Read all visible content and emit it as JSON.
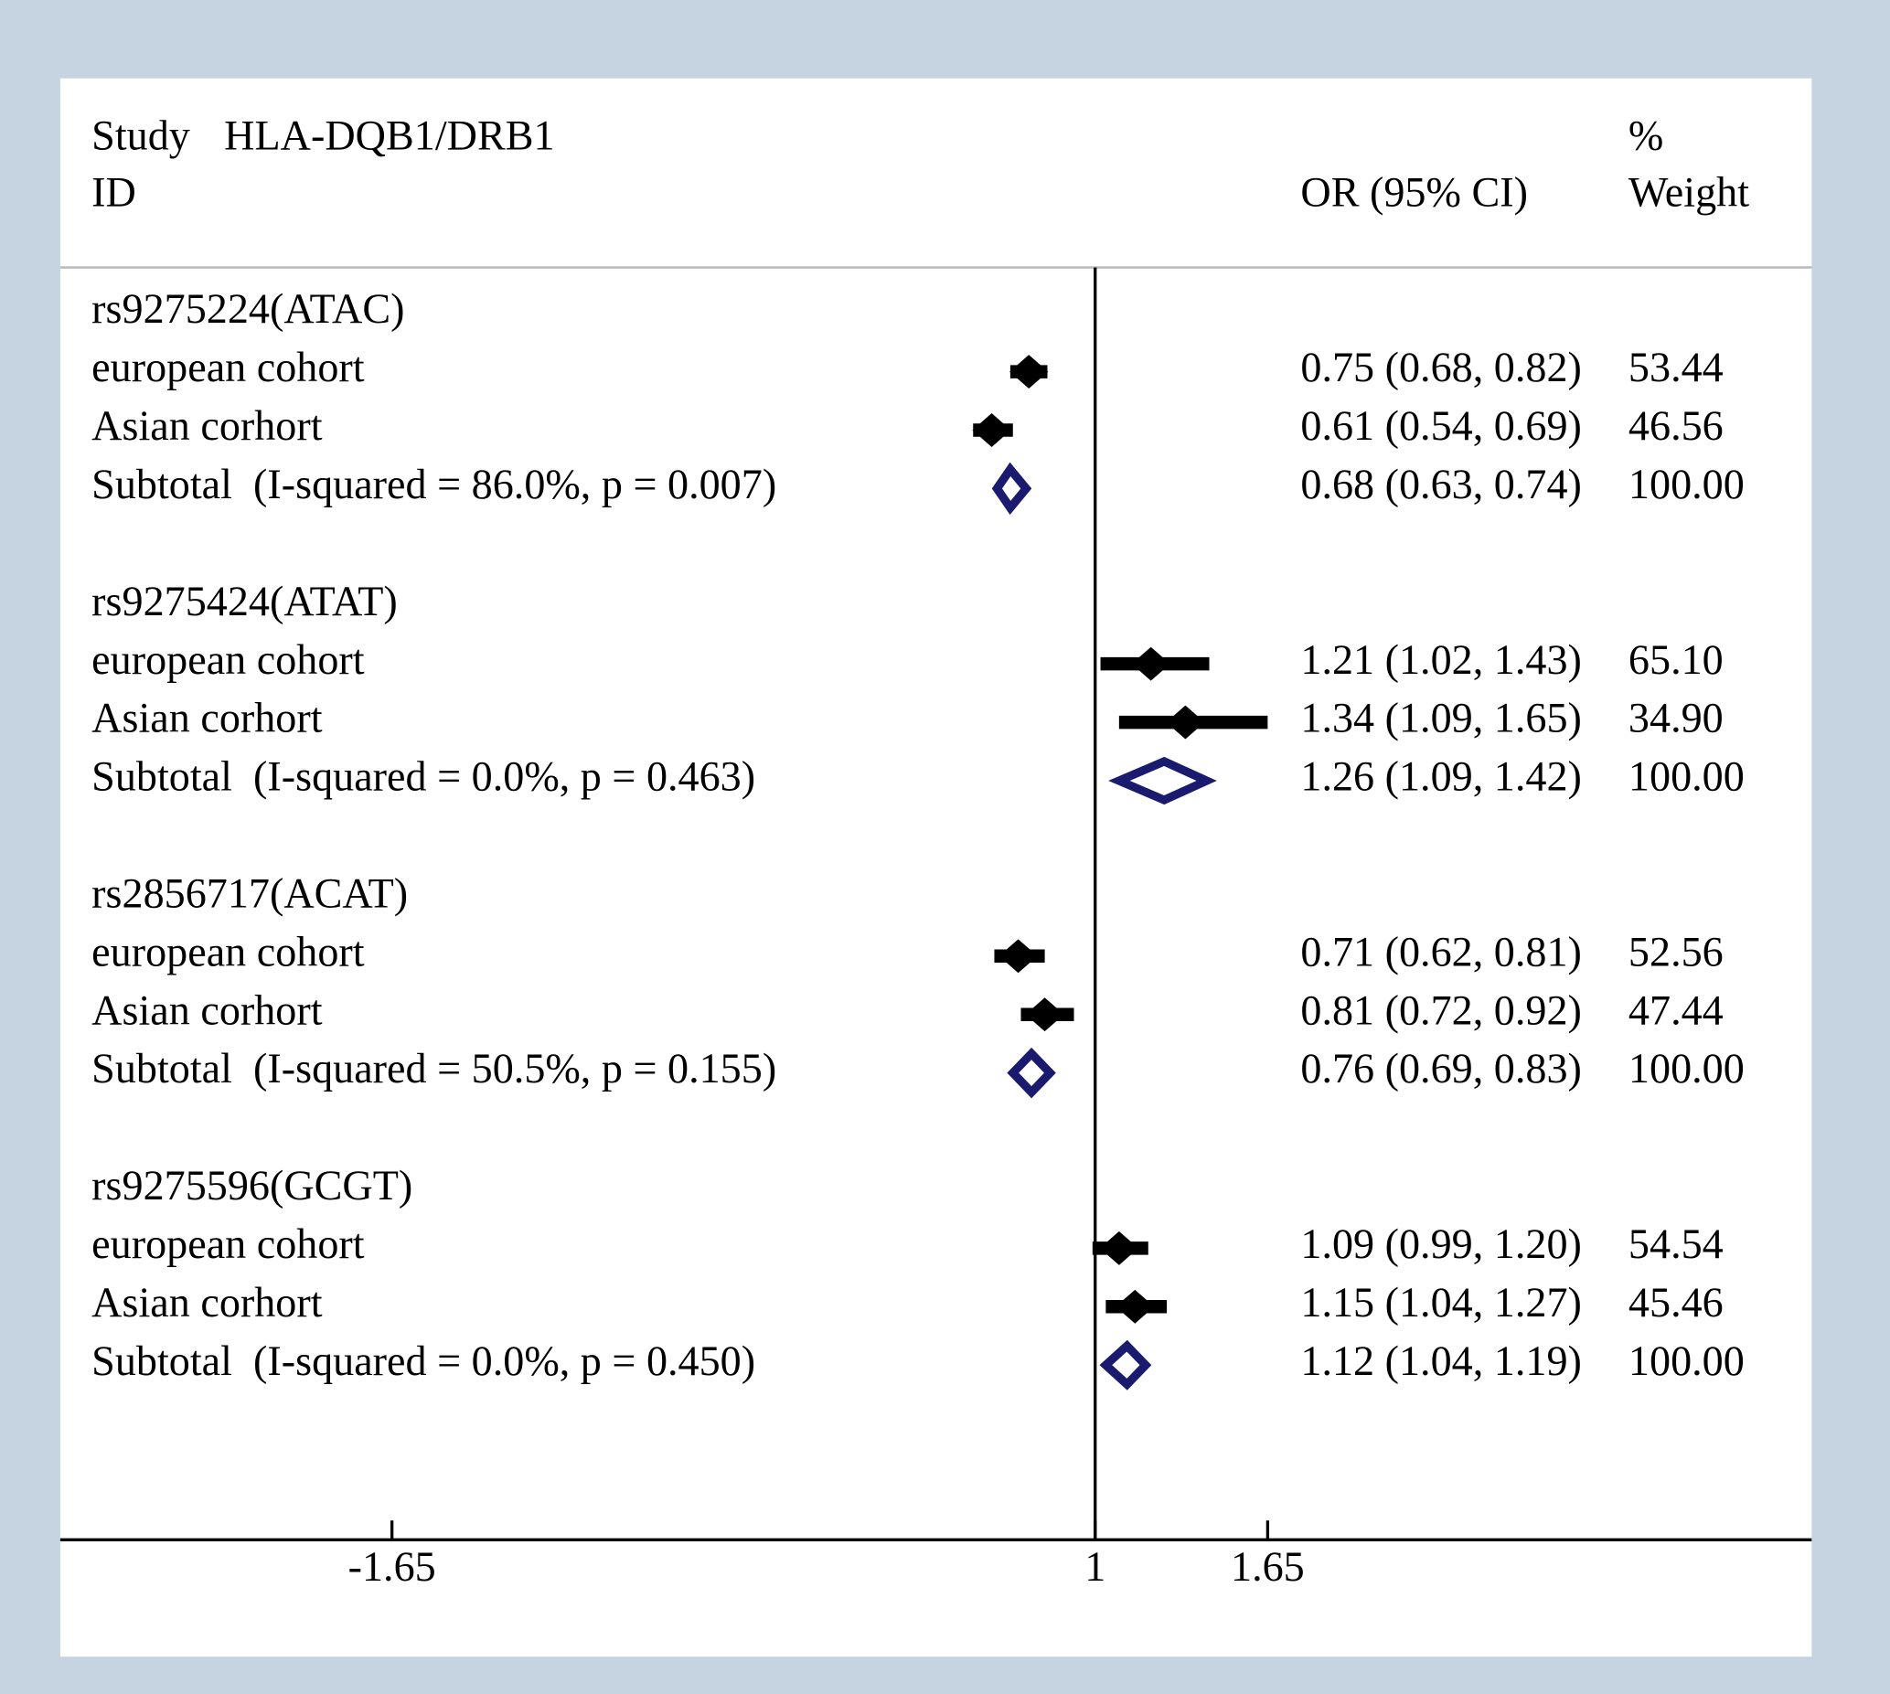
{
  "chart_data": {
    "type": "forest",
    "header": {
      "study": "Study",
      "subtitle": "HLA-DQB1/DRB1",
      "id": "ID",
      "effect": "OR (95% CI)",
      "weight_top": "%",
      "weight": "Weight"
    },
    "xlim": [
      -2.9,
      3.7
    ],
    "xticks": [
      -1.65,
      1,
      1.65
    ],
    "reference": 1,
    "marker_color": "#000000",
    "subtotal_color": "#1a1a6e",
    "groups": [
      {
        "name": "rs9275224(ATAC)",
        "studies": [
          {
            "label": "european cohort",
            "or": 0.75,
            "ci": [
              0.68,
              0.82
            ],
            "or_label": "0.75 (0.68, 0.82)",
            "weight": 53.44,
            "weight_label": "53.44"
          },
          {
            "label": "Asian corhort",
            "or": 0.61,
            "ci": [
              0.54,
              0.69
            ],
            "or_label": "0.61 (0.54, 0.69)",
            "weight": 46.56,
            "weight_label": "46.56"
          }
        ],
        "subtotal": {
          "label": "Subtotal  (I-squared = 86.0%, p = 0.007)",
          "or": 0.68,
          "ci": [
            0.63,
            0.74
          ],
          "or_label": "0.68 (0.63, 0.74)",
          "weight": 100,
          "weight_label": "100.00"
        }
      },
      {
        "name": "rs9275424(ATAT)",
        "studies": [
          {
            "label": "european cohort",
            "or": 1.21,
            "ci": [
              1.02,
              1.43
            ],
            "or_label": "1.21 (1.02, 1.43)",
            "weight": 65.1,
            "weight_label": "65.10"
          },
          {
            "label": "Asian corhort",
            "or": 1.34,
            "ci": [
              1.09,
              1.65
            ],
            "or_label": "1.34 (1.09, 1.65)",
            "weight": 34.9,
            "weight_label": "34.90"
          }
        ],
        "subtotal": {
          "label": "Subtotal  (I-squared = 0.0%, p = 0.463)",
          "or": 1.26,
          "ci": [
            1.09,
            1.42
          ],
          "or_label": "1.26 (1.09, 1.42)",
          "weight": 100,
          "weight_label": "100.00"
        }
      },
      {
        "name": "rs2856717(ACAT)",
        "studies": [
          {
            "label": "european cohort",
            "or": 0.71,
            "ci": [
              0.62,
              0.81
            ],
            "or_label": "0.71 (0.62, 0.81)",
            "weight": 52.56,
            "weight_label": "52.56"
          },
          {
            "label": "Asian corhort",
            "or": 0.81,
            "ci": [
              0.72,
              0.92
            ],
            "or_label": "0.81 (0.72, 0.92)",
            "weight": 47.44,
            "weight_label": "47.44"
          }
        ],
        "subtotal": {
          "label": "Subtotal  (I-squared = 50.5%, p = 0.155)",
          "or": 0.76,
          "ci": [
            0.69,
            0.83
          ],
          "or_label": "0.76 (0.69, 0.83)",
          "weight": 100,
          "weight_label": "100.00"
        }
      },
      {
        "name": "rs9275596(GCGT)",
        "studies": [
          {
            "label": "european cohort",
            "or": 1.09,
            "ci": [
              0.99,
              1.2
            ],
            "or_label": "1.09 (0.99, 1.20)",
            "weight": 54.54,
            "weight_label": "54.54"
          },
          {
            "label": "Asian corhort",
            "or": 1.15,
            "ci": [
              1.04,
              1.27
            ],
            "or_label": "1.15 (1.04, 1.27)",
            "weight": 45.46,
            "weight_label": "45.46"
          }
        ],
        "subtotal": {
          "label": "Subtotal  (I-squared = 0.0%, p = 0.450)",
          "or": 1.12,
          "ci": [
            1.04,
            1.19
          ],
          "or_label": "1.12 (1.04, 1.19)",
          "weight": 100,
          "weight_label": "100.00"
        }
      }
    ]
  }
}
